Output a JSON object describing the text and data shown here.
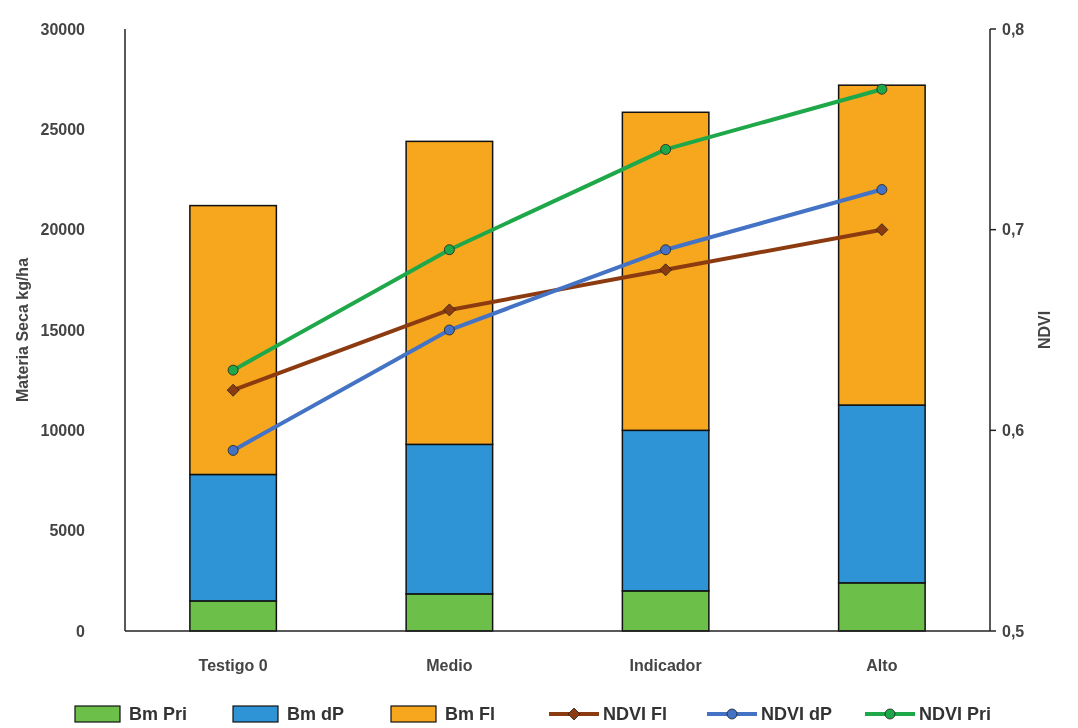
{
  "chart_data": {
    "type": "bar",
    "stacked": true,
    "categories": [
      "Testigo 0",
      "Medio",
      "Indicador",
      "Alto"
    ],
    "ylabel": "Materia Seca kg/ha",
    "y2label": "NDVI",
    "ylim": [
      0,
      30000
    ],
    "yticks": [
      0,
      5000,
      10000,
      15000,
      20000,
      25000,
      30000
    ],
    "y2lim": [
      0.5,
      0.8
    ],
    "y2ticks": [
      {
        "value": 0.5,
        "label": "0,5"
      },
      {
        "value": 0.6,
        "label": "0,6"
      },
      {
        "value": 0.7,
        "label": "0,7"
      },
      {
        "value": 0.8,
        "label": "0,8"
      }
    ],
    "grid": false,
    "legend": "bottom",
    "series": [
      {
        "name": "Bm Pri",
        "color": "#6cc04a",
        "values": [
          1500,
          1850,
          2000,
          2400
        ]
      },
      {
        "name": "Bm dP",
        "color": "#2e94d6",
        "values": [
          6300,
          7450,
          8000,
          8860
        ]
      },
      {
        "name": "Bm Fl",
        "color": "#f6a71e",
        "values": [
          13400,
          15100,
          15850,
          15940
        ]
      },
      {
        "name": "NDVI Fl",
        "type": "line",
        "axis": "y2",
        "marker": "diamond",
        "color": "#8c3b10",
        "values": [
          0.62,
          0.66,
          0.68,
          0.7
        ]
      },
      {
        "name": "NDVI dP",
        "type": "line",
        "axis": "y2",
        "marker": "circle",
        "color": "#4472c4",
        "values": [
          0.59,
          0.65,
          0.69,
          0.72
        ]
      },
      {
        "name": "NDVI Pri",
        "type": "line",
        "axis": "y2",
        "marker": "circle",
        "color": "#1fa84a",
        "values": [
          0.63,
          0.69,
          0.74,
          0.77
        ]
      }
    ]
  }
}
